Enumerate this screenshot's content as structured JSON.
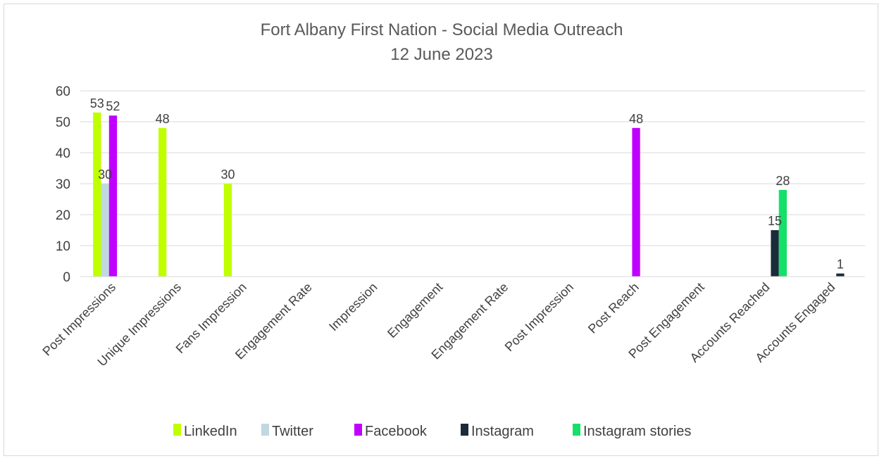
{
  "chart_data": {
    "type": "bar",
    "title": "Fort Albany First Nation - Social Media Outreach",
    "subtitle": "12 June 2023",
    "xlabel": "",
    "ylabel": "",
    "ylim": [
      0,
      60
    ],
    "yticks": [
      0,
      10,
      20,
      30,
      40,
      50,
      60
    ],
    "grid": true,
    "legend_position": "bottom",
    "categories": [
      "Post Impressions",
      "Unique Impressions",
      "Fans Impression",
      "Engagement Rate",
      "Impression",
      "Engagement",
      "Engagement Rate",
      "Post Impression",
      "Post Reach",
      "Post Engagement",
      "Accounts Reached",
      "Accounts Engaged"
    ],
    "series": [
      {
        "name": "LinkedIn",
        "color": "#c0ff00",
        "values": [
          53,
          48,
          30,
          null,
          null,
          null,
          null,
          null,
          null,
          null,
          null,
          null
        ]
      },
      {
        "name": "Twitter",
        "color": "#c0d8e0",
        "values": [
          30,
          null,
          null,
          null,
          null,
          null,
          null,
          null,
          null,
          null,
          null,
          null
        ]
      },
      {
        "name": "Facebook",
        "color": "#c000ff",
        "values": [
          52,
          null,
          null,
          null,
          null,
          null,
          null,
          null,
          48,
          null,
          null,
          null
        ]
      },
      {
        "name": "Instagram",
        "color": "#1c2b39",
        "values": [
          null,
          null,
          null,
          null,
          null,
          null,
          null,
          null,
          null,
          null,
          15,
          1
        ]
      },
      {
        "name": "Instagram stories",
        "color": "#16e06a",
        "values": [
          null,
          null,
          null,
          null,
          null,
          null,
          null,
          null,
          null,
          null,
          28,
          null
        ]
      }
    ]
  }
}
